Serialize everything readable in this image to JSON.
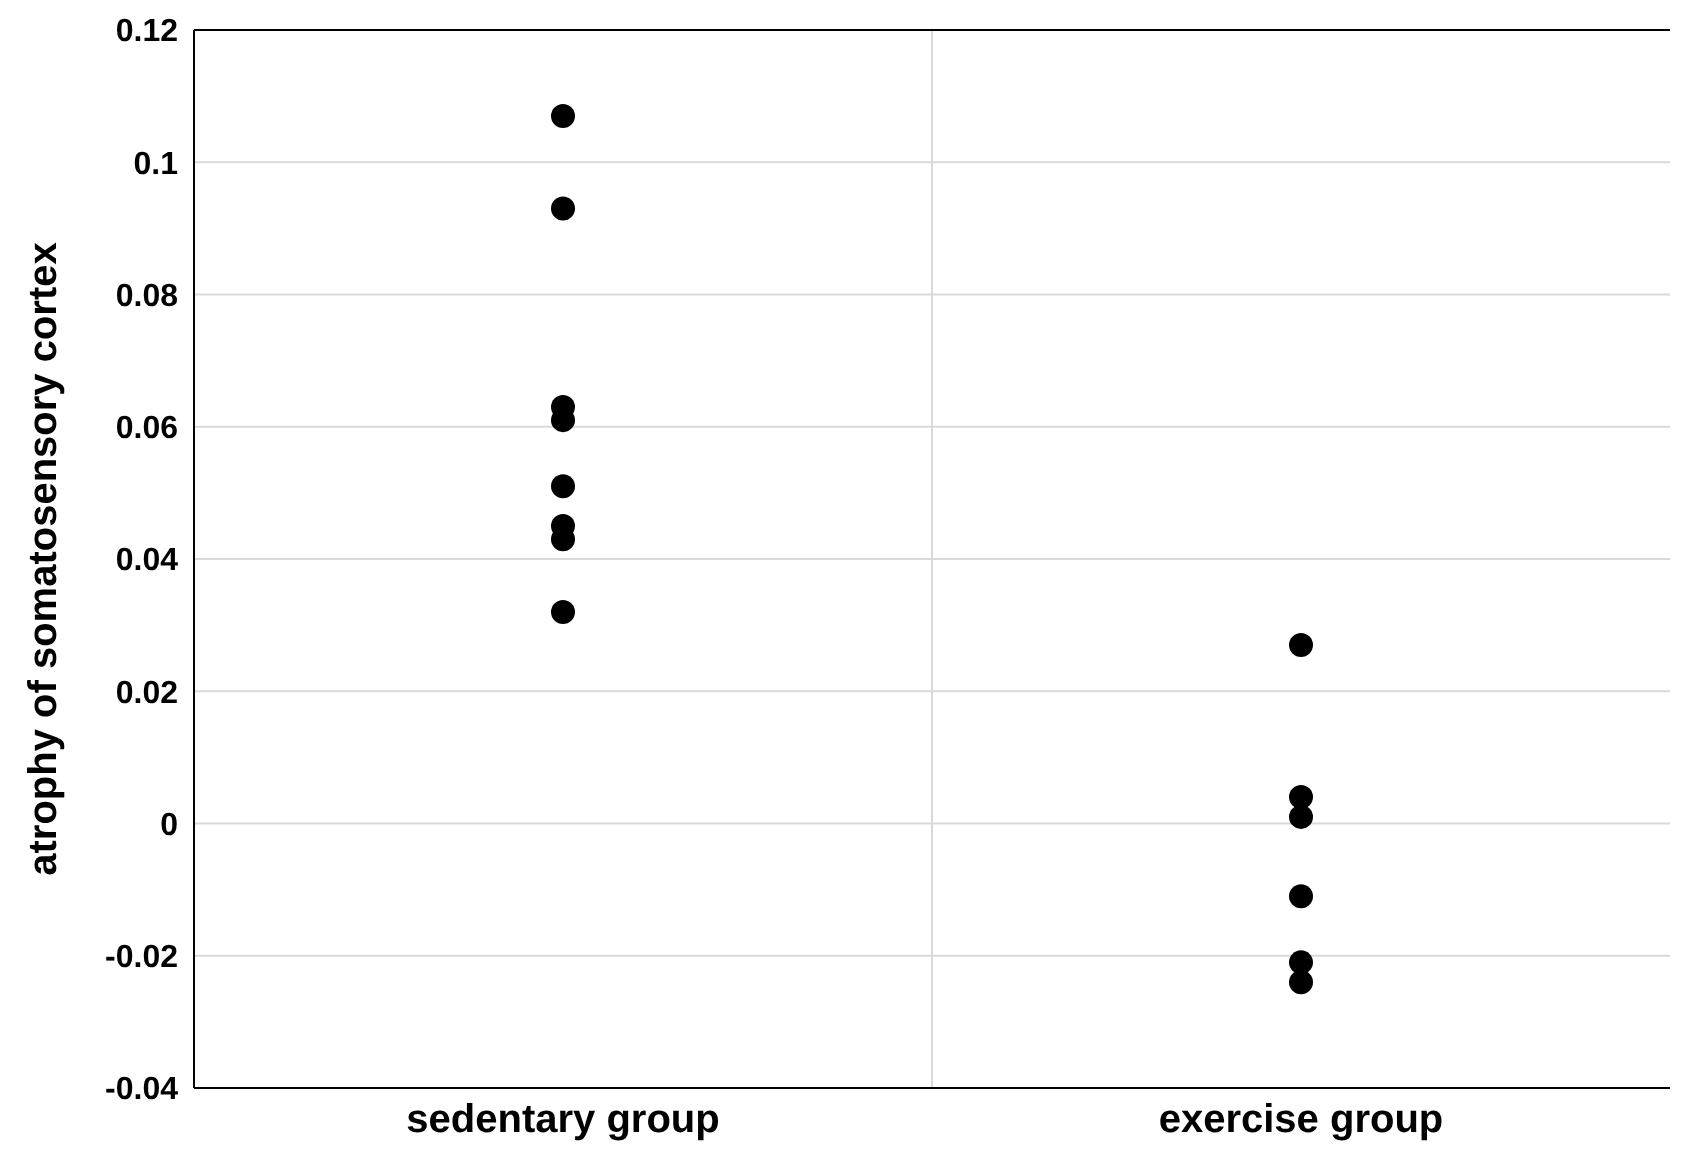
{
  "chart_data": {
    "type": "scatter",
    "ylabel": "atrophy of somatosensory  cortex",
    "categories": [
      "sedentary group",
      "exercise group"
    ],
    "series": [
      {
        "color": "#000000",
        "x": [
          "sedentary group",
          "sedentary group",
          "sedentary group",
          "sedentary group",
          "sedentary group",
          "sedentary group",
          "sedentary group",
          "sedentary group",
          "exercise group",
          "exercise group",
          "exercise group",
          "exercise group",
          "exercise group",
          "exercise group"
        ],
        "values": [
          0.107,
          0.093,
          0.063,
          0.061,
          0.051,
          0.045,
          0.043,
          0.032,
          0.027,
          0.004,
          0.001,
          -0.011,
          -0.021,
          -0.024
        ]
      }
    ],
    "ylim": [
      -0.04,
      0.12
    ],
    "yticks": [
      -0.04,
      -0.02,
      0,
      0.02,
      0.04,
      0.06,
      0.08,
      0.1,
      0.12
    ],
    "grid": true,
    "marker": "circle"
  }
}
